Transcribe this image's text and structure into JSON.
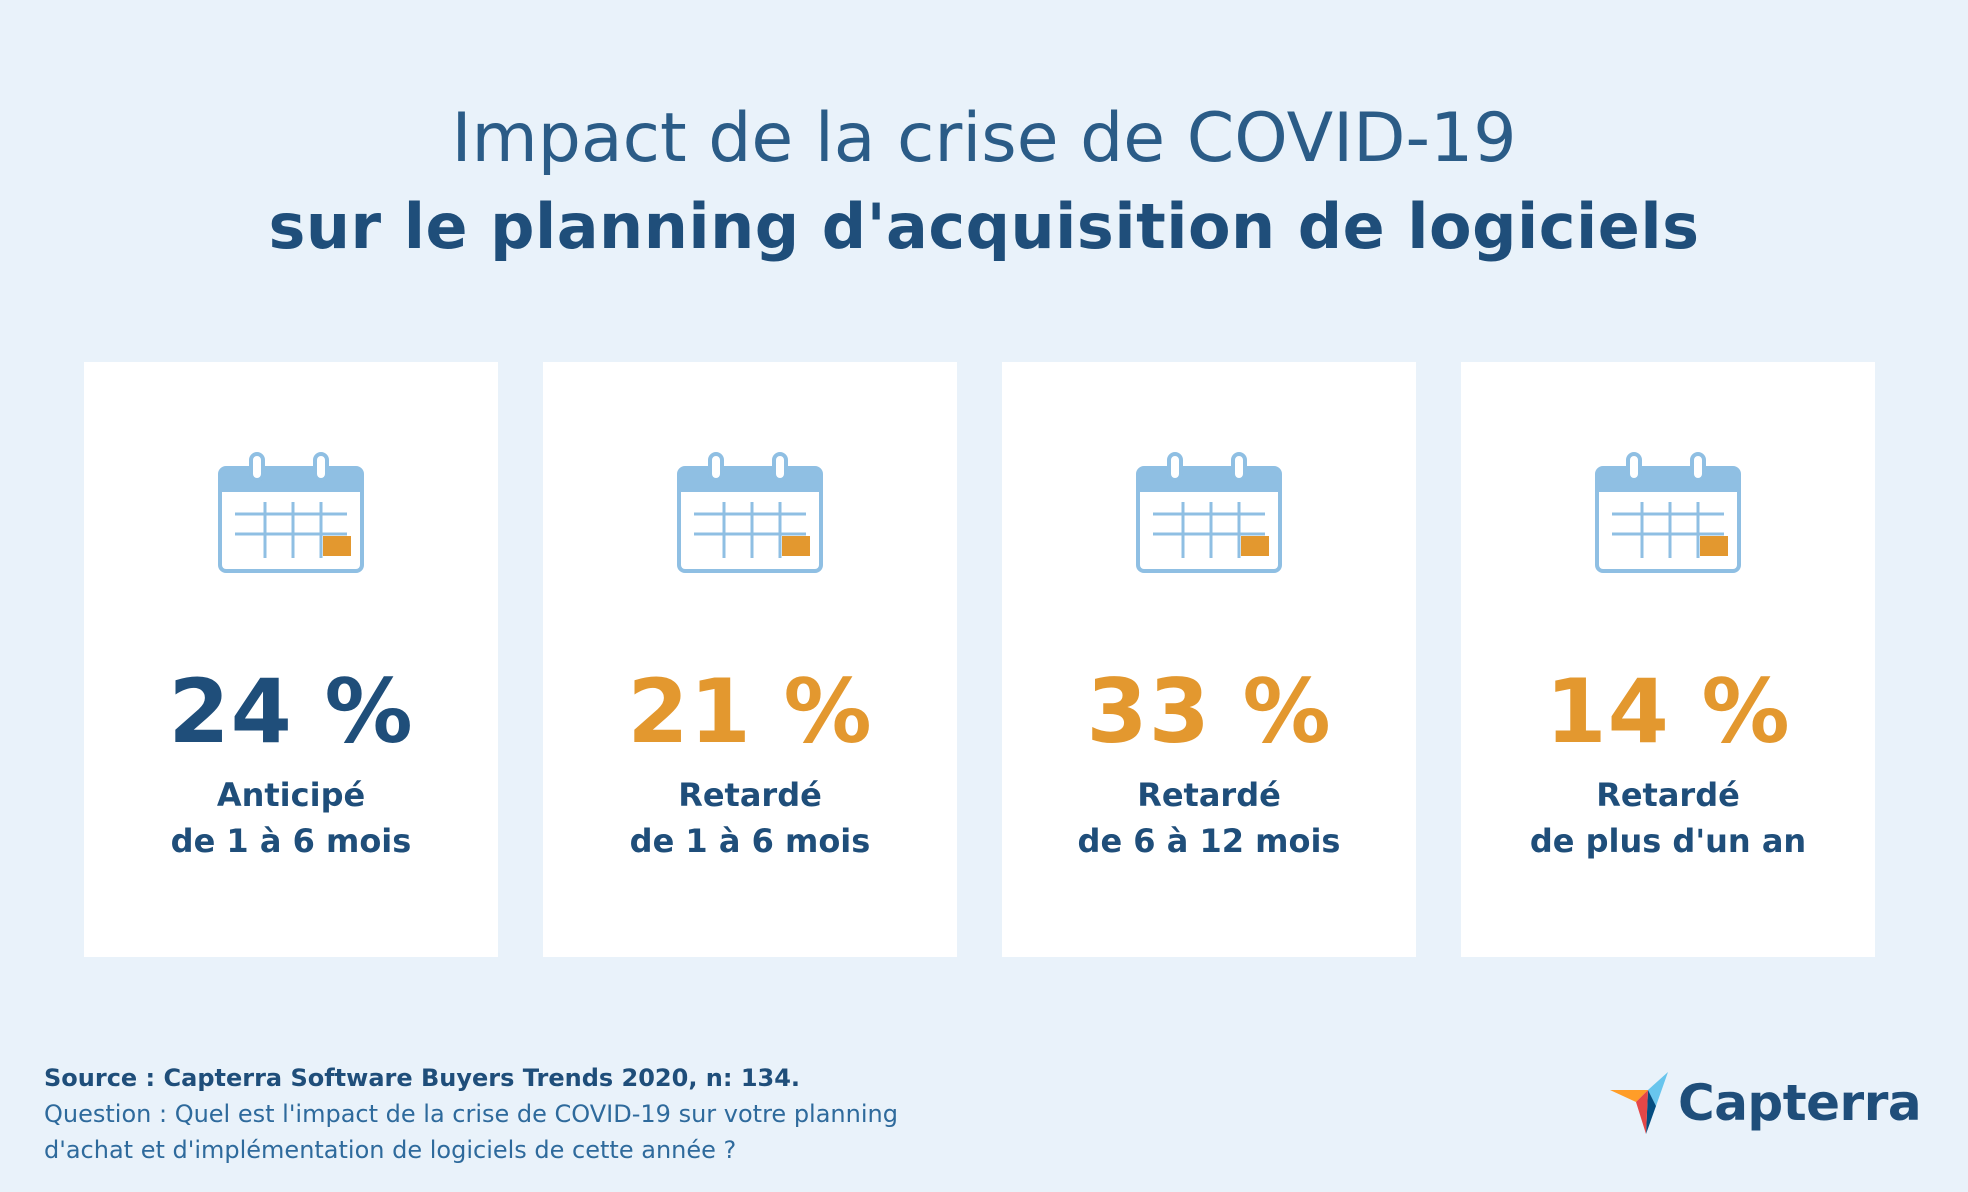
{
  "title": {
    "line1": "Impact de la crise de COVID-19",
    "line2": "sur le planning d'acquisition de logiciels"
  },
  "chart_data": {
    "type": "table",
    "unit": "%",
    "categories": [
      "Anticipé de 1 à 6 mois",
      "Retardé de 1 à 6 mois",
      "Retardé de 6 à 12 mois",
      "Retardé de plus d'un an"
    ],
    "values": [
      24,
      21,
      33,
      14
    ]
  },
  "cards": [
    {
      "value": "24 %",
      "label_line1": "Anticipé",
      "label_line2": "de 1 à 6 mois",
      "color": "#1f4e7a"
    },
    {
      "value": "21 %",
      "label_line1": "Retardé",
      "label_line2": "de 1 à 6 mois",
      "color": "#e3982f"
    },
    {
      "value": "33 %",
      "label_line1": "Retardé",
      "label_line2": "de 6 à 12 mois",
      "color": "#e3982f"
    },
    {
      "value": "14 %",
      "label_line1": "Retardé",
      "label_line2": "de plus d'un an",
      "color": "#e3982f"
    }
  ],
  "icons": {
    "card_icon": "calendar-icon",
    "logo_icon": "capterra-arrow-icon"
  },
  "colors": {
    "background": "#e9f2fa",
    "navy": "#1f4e7a",
    "orange": "#e3982f",
    "calendar_blue": "#8fbfe3"
  },
  "footer": {
    "source": "Source : Capterra Software Buyers Trends 2020, n: 134.",
    "question": "Question : Quel est l'impact de la crise de COVID-19 sur votre planning d'achat et d'implémentation de logiciels de cette année ?"
  },
  "logo": {
    "text": "Capterra"
  }
}
